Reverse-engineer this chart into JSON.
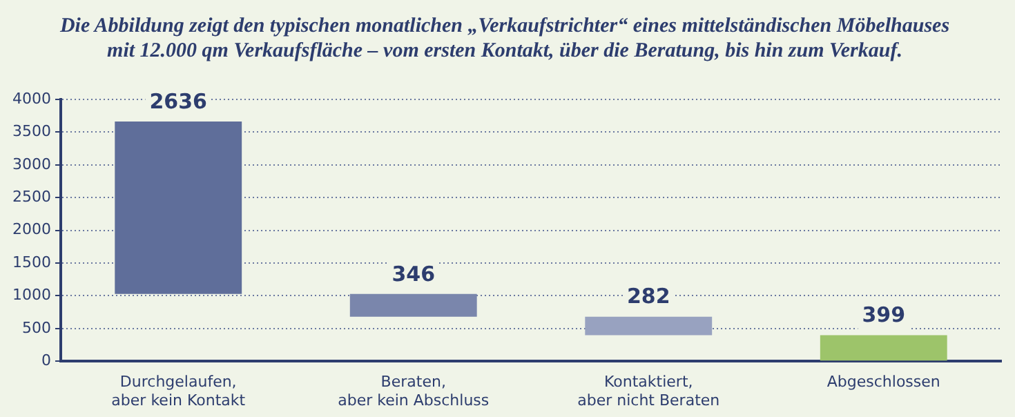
{
  "chart_data": {
    "type": "bar",
    "title": "Die Abbildung zeigt den typischen monatlichen „Verkaufstrichter“ eines mittelständischen Möbelhauses\nmit 12.000 qm Verkaufsfläche – vom ersten Kontakt, über die Beratung, bis hin zum Verkauf.",
    "categories": [
      "Durchgelaufen,\naber kein Kontakt",
      "Beraten,\naber kein Abschluss",
      "Kontaktiert,\naber nicht Beraten",
      "Abgeschlossen"
    ],
    "values": [
      2636,
      346,
      282,
      399
    ],
    "base": [
      1027,
      681,
      399,
      0
    ],
    "colors": [
      "#5f6e9a",
      "#7a86ac",
      "#98a2c0",
      "#9dc46a"
    ],
    "ylim": [
      0,
      4000
    ],
    "yticks": [
      0,
      500,
      1000,
      1500,
      2000,
      2500,
      3000,
      3500,
      4000
    ],
    "grid": "y",
    "data_labels": true,
    "legend": false
  }
}
